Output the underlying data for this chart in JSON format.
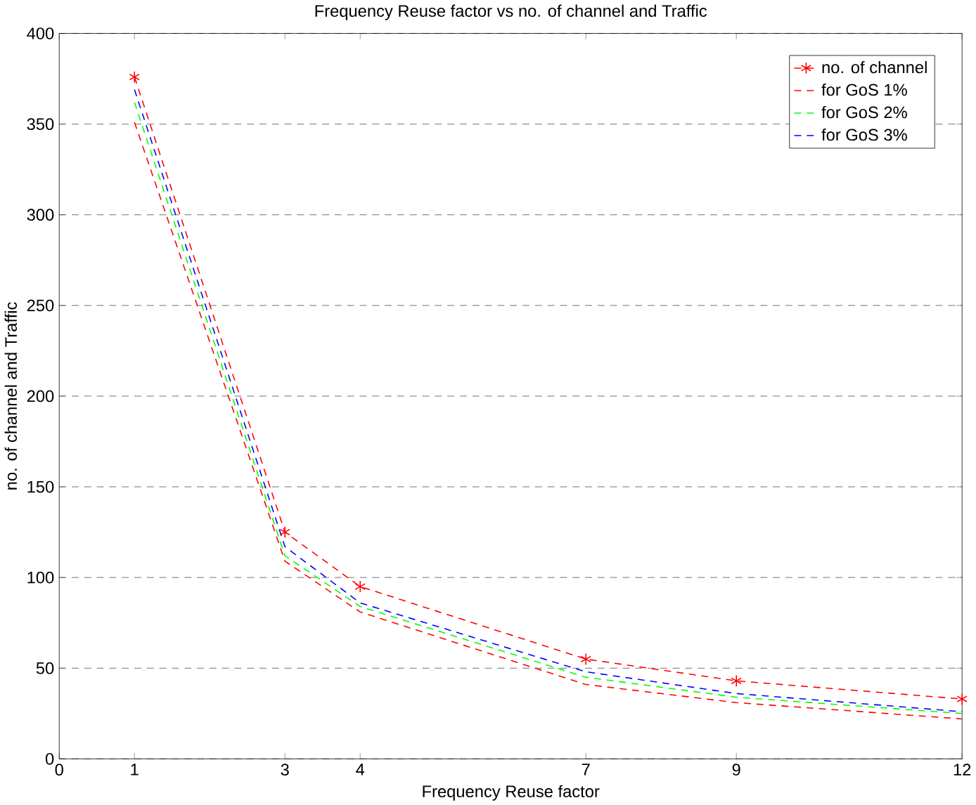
{
  "chart_data": {
    "type": "line",
    "title": "Frequency Reuse factor vs no. of channel and Traffic",
    "xlabel": "Frequency Reuse factor",
    "ylabel": "no. of channel and Traffic",
    "x": [
      1,
      3,
      4,
      7,
      9,
      12
    ],
    "series": [
      {
        "name": "no. of channel",
        "color": "#ff0000",
        "marker": "cross",
        "values": [
          376,
          125,
          95,
          55,
          43,
          33
        ]
      },
      {
        "name": "for GoS 1%",
        "color": "#ff0000",
        "marker": "none",
        "values": [
          351,
          109,
          81,
          41,
          31,
          22
        ]
      },
      {
        "name": "for GoS 2%",
        "color": "#00ff00",
        "marker": "none",
        "values": [
          362,
          112,
          84,
          45,
          34,
          25
        ]
      },
      {
        "name": "for GoS 3%",
        "color": "#0000ff",
        "marker": "none",
        "values": [
          369,
          117,
          86,
          48,
          36,
          26
        ]
      }
    ],
    "line_style": "dashed",
    "xlim": [
      0,
      12
    ],
    "xticks": [
      0,
      1,
      3,
      4,
      7,
      9,
      12
    ],
    "ylim": [
      0,
      400
    ],
    "yticks": [
      0,
      50,
      100,
      150,
      200,
      250,
      300,
      350,
      400
    ],
    "grid": "y",
    "legend": "top right"
  }
}
